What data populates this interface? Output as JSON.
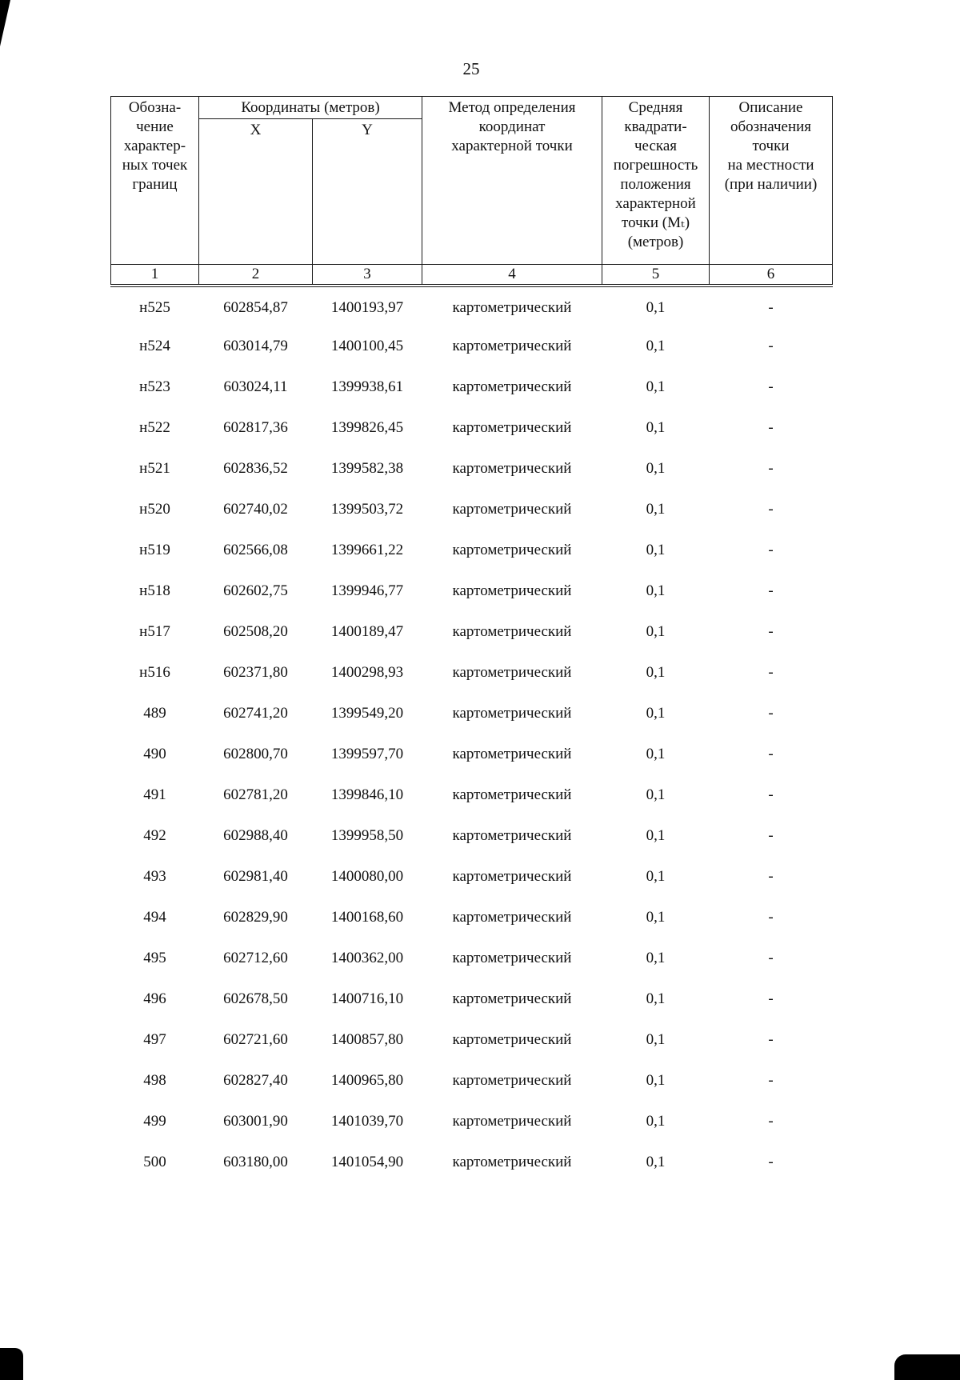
{
  "page": {
    "number": "25"
  },
  "table": {
    "headers": {
      "point_label": "Обозна-\nчение\nхарактер-\nных точек\nграниц",
      "coords_group": "Координаты (метров)",
      "x": "X",
      "y": "Y",
      "method": "Метод определения\nкоординат\nхарактерной точки",
      "error": "Средняя\nквадрати-\nческая\nпогрешность\nположения\nхарактерной\nточки (Мₜ)\n(метров)",
      "description": "Описание\nобозначения\nточки\nна местности\n(при наличии)"
    },
    "column_numbers": [
      "1",
      "2",
      "3",
      "4",
      "5",
      "6"
    ],
    "rows": [
      {
        "id": "н525",
        "x": "602854,87",
        "y": "1400193,97",
        "method": "картометрический",
        "error": "0,1",
        "desc": "-"
      },
      {
        "id": "н524",
        "x": "603014,79",
        "y": "1400100,45",
        "method": "картометрический",
        "error": "0,1",
        "desc": "-"
      },
      {
        "id": "н523",
        "x": "603024,11",
        "y": "1399938,61",
        "method": "картометрический",
        "error": "0,1",
        "desc": "-"
      },
      {
        "id": "н522",
        "x": "602817,36",
        "y": "1399826,45",
        "method": "картометрический",
        "error": "0,1",
        "desc": "-"
      },
      {
        "id": "н521",
        "x": "602836,52",
        "y": "1399582,38",
        "method": "картометрический",
        "error": "0,1",
        "desc": "-"
      },
      {
        "id": "н520",
        "x": "602740,02",
        "y": "1399503,72",
        "method": "картометрический",
        "error": "0,1",
        "desc": "-"
      },
      {
        "id": "н519",
        "x": "602566,08",
        "y": "1399661,22",
        "method": "картометрический",
        "error": "0,1",
        "desc": "-"
      },
      {
        "id": "н518",
        "x": "602602,75",
        "y": "1399946,77",
        "method": "картометрический",
        "error": "0,1",
        "desc": "-"
      },
      {
        "id": "н517",
        "x": "602508,20",
        "y": "1400189,47",
        "method": "картометрический",
        "error": "0,1",
        "desc": "-"
      },
      {
        "id": "н516",
        "x": "602371,80",
        "y": "1400298,93",
        "method": "картометрический",
        "error": "0,1",
        "desc": "-"
      },
      {
        "id": "489",
        "x": "602741,20",
        "y": "1399549,20",
        "method": "картометрический",
        "error": "0,1",
        "desc": "-"
      },
      {
        "id": "490",
        "x": "602800,70",
        "y": "1399597,70",
        "method": "картометрический",
        "error": "0,1",
        "desc": "-"
      },
      {
        "id": "491",
        "x": "602781,20",
        "y": "1399846,10",
        "method": "картометрический",
        "error": "0,1",
        "desc": "-"
      },
      {
        "id": "492",
        "x": "602988,40",
        "y": "1399958,50",
        "method": "картометрический",
        "error": "0,1",
        "desc": "-"
      },
      {
        "id": "493",
        "x": "602981,40",
        "y": "1400080,00",
        "method": "картометрический",
        "error": "0,1",
        "desc": "-"
      },
      {
        "id": "494",
        "x": "602829,90",
        "y": "1400168,60",
        "method": "картометрический",
        "error": "0,1",
        "desc": "-"
      },
      {
        "id": "495",
        "x": "602712,60",
        "y": "1400362,00",
        "method": "картометрический",
        "error": "0,1",
        "desc": "-"
      },
      {
        "id": "496",
        "x": "602678,50",
        "y": "1400716,10",
        "method": "картометрический",
        "error": "0,1",
        "desc": "-"
      },
      {
        "id": "497",
        "x": "602721,60",
        "y": "1400857,80",
        "method": "картометрический",
        "error": "0,1",
        "desc": "-"
      },
      {
        "id": "498",
        "x": "602827,40",
        "y": "1400965,80",
        "method": "картометрический",
        "error": "0,1",
        "desc": "-"
      },
      {
        "id": "499",
        "x": "603001,90",
        "y": "1401039,70",
        "method": "картометрический",
        "error": "0,1",
        "desc": "-"
      },
      {
        "id": "500",
        "x": "603180,00",
        "y": "1401054,90",
        "method": "картометрический",
        "error": "0,1",
        "desc": "-"
      }
    ]
  }
}
